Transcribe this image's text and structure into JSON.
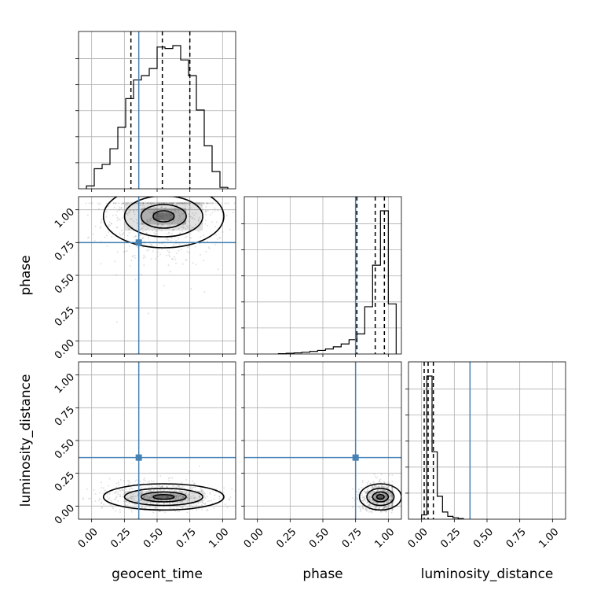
{
  "chart_data": {
    "type": "corner",
    "parameters": [
      "geocent_time",
      "phase",
      "luminosity_distance"
    ],
    "tick_labels": [
      "0.00",
      "0.25",
      "0.50",
      "0.75",
      "1.00"
    ],
    "truths": {
      "geocent_time": 0.36,
      "phase": 0.75,
      "luminosity_distance": 0.37
    },
    "colors": {
      "truth": "#4682b4",
      "hist": "#000000",
      "grid": "#b0b0b0"
    },
    "diagonals": [
      {
        "parameter": "geocent_time",
        "xlim": [
          -0.1,
          1.1
        ],
        "bin_edges": [
          -0.04,
          0.02,
          0.08,
          0.14,
          0.2,
          0.26,
          0.32,
          0.38,
          0.44,
          0.5,
          0.56,
          0.62,
          0.68,
          0.74,
          0.8,
          0.86,
          0.92,
          0.98,
          1.04
        ],
        "heights": [
          0.02,
          0.14,
          0.17,
          0.28,
          0.43,
          0.63,
          0.76,
          0.79,
          0.84,
          0.99,
          0.98,
          1.0,
          0.9,
          0.79,
          0.55,
          0.3,
          0.12,
          0.01
        ],
        "quantiles": [
          0.3,
          0.54,
          0.75
        ]
      },
      {
        "parameter": "phase",
        "xlim": [
          -0.1,
          1.1
        ],
        "bin_edges": [
          0.16,
          0.22,
          0.28,
          0.34,
          0.4,
          0.46,
          0.52,
          0.58,
          0.64,
          0.7,
          0.76,
          0.82,
          0.88,
          0.94,
          1.0,
          1.06
        ],
        "heights": [
          0.002,
          0.005,
          0.008,
          0.012,
          0.018,
          0.025,
          0.035,
          0.05,
          0.07,
          0.1,
          0.14,
          0.33,
          0.62,
          1.0,
          0.35
        ],
        "quantiles": [
          0.76,
          0.9,
          0.97
        ]
      },
      {
        "parameter": "luminosity_distance",
        "xlim": [
          -0.1,
          1.1
        ],
        "bin_edges": [
          0.0,
          0.04,
          0.08,
          0.12,
          0.16,
          0.2,
          0.24,
          0.28,
          0.32
        ],
        "heights": [
          0.03,
          1.0,
          0.47,
          0.16,
          0.05,
          0.02,
          0.01,
          0.004
        ],
        "quantiles": [
          0.02,
          0.05,
          0.09
        ]
      }
    ],
    "pairs": [
      {
        "x": "geocent_time",
        "y": "phase",
        "x_center": 0.55,
        "y_center": 0.95,
        "x_spread": 0.23,
        "y_spread": 0.12
      },
      {
        "x": "geocent_time",
        "y": "luminosity_distance",
        "x_center": 0.55,
        "y_center": 0.07,
        "x_spread": 0.23,
        "y_spread": 0.05
      },
      {
        "x": "phase",
        "y": "luminosity_distance",
        "x_center": 0.94,
        "y_center": 0.07,
        "x_spread": 0.08,
        "y_spread": 0.05
      }
    ]
  }
}
